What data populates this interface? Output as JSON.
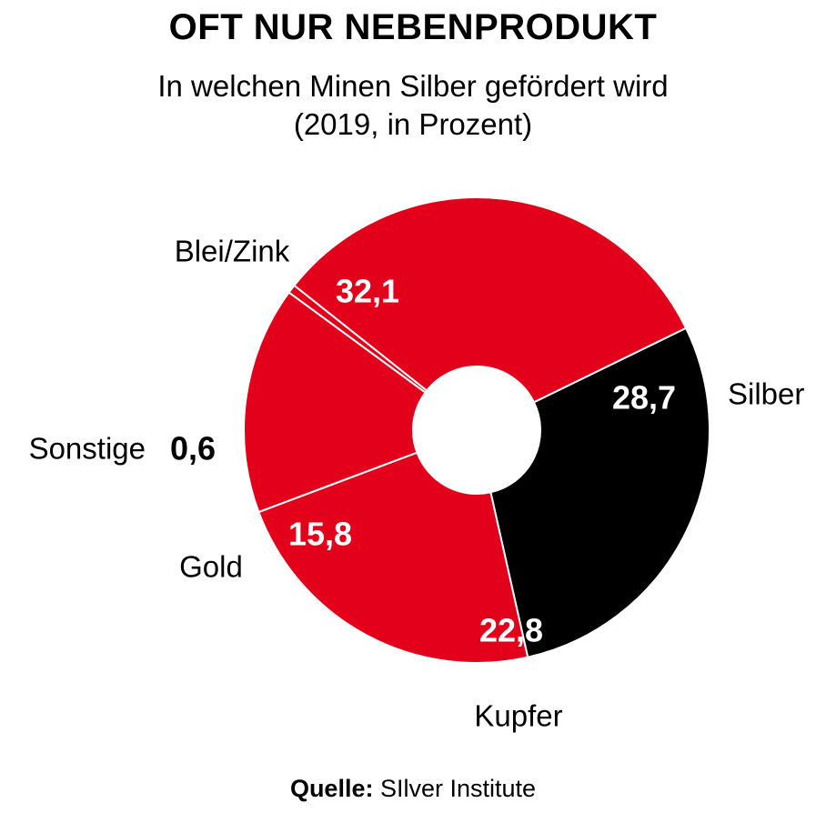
{
  "title": "OFT NUR NEBENPRODUKT",
  "subtitle_line1": "In welchen Minen Silber gefördert wird",
  "subtitle_line2": "(2019, in Prozent)",
  "source": {
    "label": "Quelle:",
    "text": "SIlver Institute"
  },
  "colors": {
    "red": "#e2001a",
    "black": "#000000",
    "separator": "#ffffff"
  },
  "chart_data": {
    "type": "pie",
    "variant": "donut",
    "unit": "Prozent",
    "slices": [
      {
        "name": "Silber",
        "value": 28.7,
        "label": "28,7",
        "color": "#000000"
      },
      {
        "name": "Kupfer",
        "value": 22.8,
        "label": "22,8",
        "color": "#e2001a"
      },
      {
        "name": "Gold",
        "value": 15.8,
        "label": "15,8",
        "color": "#e2001a"
      },
      {
        "name": "Sonstige",
        "value": 0.6,
        "label": "0,6",
        "color": "#e2001a"
      },
      {
        "name": "Blei/Zink",
        "value": 32.1,
        "label": "32,1",
        "color": "#e2001a"
      }
    ],
    "legend": "none"
  }
}
